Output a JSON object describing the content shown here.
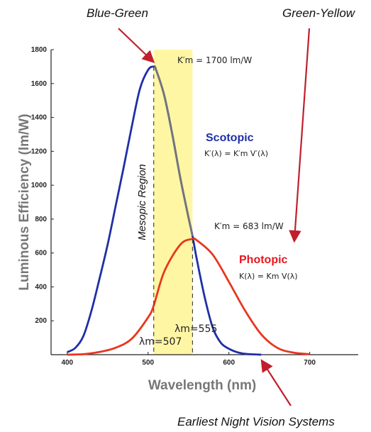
{
  "chart_data": {
    "type": "line",
    "xlabel": "Wavelength (nm)",
    "ylabel": "Luminous Efficiency (lm/W)",
    "xlim": [
      380,
      760
    ],
    "ylim": [
      0,
      1800
    ],
    "x_ticks": [
      400,
      500,
      600,
      700
    ],
    "y_ticks": [
      200,
      400,
      600,
      800,
      1000,
      1200,
      1400,
      1600,
      1800
    ],
    "grid": false,
    "shaded_band": {
      "x0": 507,
      "x1": 555,
      "color": "#fff59a",
      "label": "Mesopic Region"
    },
    "series": [
      {
        "name": "Scotopic",
        "color": "#1f2fa6",
        "x": [
          400,
          410,
          420,
          430,
          440,
          450,
          460,
          470,
          480,
          490,
          500,
          507,
          510,
          520,
          530,
          540,
          550,
          555,
          560,
          570,
          580,
          590,
          600,
          610,
          620,
          630,
          640
        ],
        "values": [
          15,
          40,
          110,
          260,
          450,
          650,
          880,
          1110,
          1350,
          1570,
          1680,
          1700,
          1680,
          1530,
          1300,
          1040,
          810,
          700,
          570,
          340,
          160,
          70,
          35,
          15,
          5,
          2,
          0
        ]
      },
      {
        "name": "Photopic",
        "color": "#e8361e",
        "x": [
          400,
          420,
          440,
          460,
          480,
          500,
          507,
          520,
          540,
          555,
          560,
          580,
          600,
          620,
          640,
          660,
          680,
          700
        ],
        "values": [
          0,
          3,
          16,
          41,
          95,
          220,
          290,
          490,
          650,
          683,
          676,
          590,
          430,
          260,
          120,
          40,
          12,
          3
        ]
      }
    ],
    "annotations": {
      "scotopic_label": "Scotopic",
      "scotopic_formula": "K′(λ) = K′m V′(λ)",
      "scotopic_peak": "K′m = 1700 lm/W",
      "photopic_label": "Photopic",
      "photopic_formula": "K(λ) = Km V(λ)",
      "photopic_peak": "K′m = 683 lm/W",
      "lambda_507": "λm=507",
      "lambda_555": "λm=555"
    }
  },
  "callouts": {
    "blue_green": "Blue-Green",
    "green_yellow": "Green-Yellow",
    "night_vision": "Earliest Night Vision Systems"
  },
  "colors": {
    "scotopic": "#1f2fa6",
    "photopic": "#e8361e",
    "arrow": "#c0202c",
    "band": "#fff59a"
  }
}
